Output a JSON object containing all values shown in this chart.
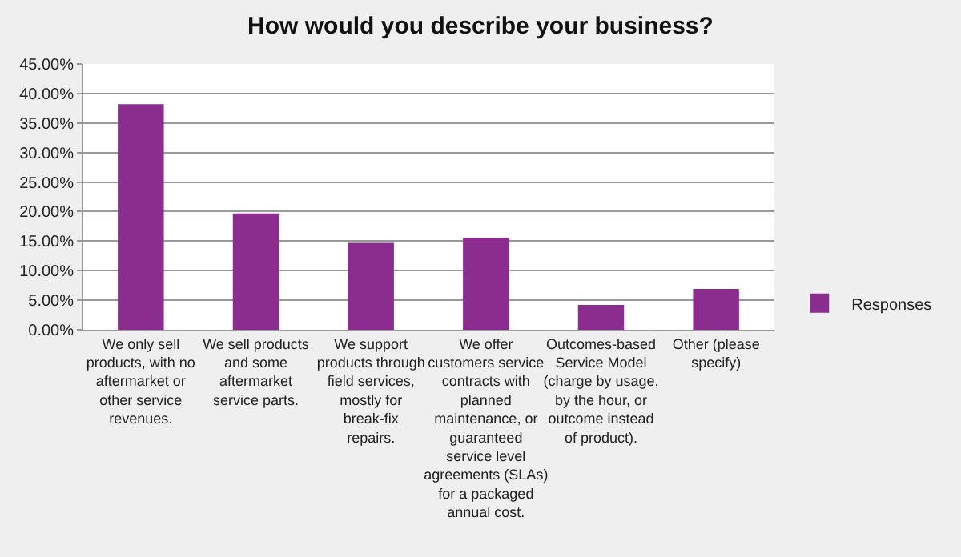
{
  "chart_data": {
    "type": "bar",
    "title": "How would you describe your business?",
    "categories": [
      "We only sell products, with no aftermarket or other service revenues.",
      "We sell products and some aftermarket service parts.",
      "We support products through field services, mostly for break-fix repairs.",
      "We offer customers service contracts with planned maintenance, or guaranteed service level agreements (SLAs) for a packaged annual cost.",
      "Outcomes-based Service Model (charge by usage, by the hour, or outcome instead of product).",
      "Other (please specify)"
    ],
    "series": [
      {
        "name": "Responses",
        "color": "#8b2c8f",
        "values": [
          38.2,
          19.7,
          14.7,
          15.6,
          4.2,
          6.9
        ]
      }
    ],
    "ylim": [
      0,
      45
    ],
    "yticks": [
      {
        "value": 0,
        "label": "0.00%"
      },
      {
        "value": 5,
        "label": "5.00%"
      },
      {
        "value": 10,
        "label": "10.00%"
      },
      {
        "value": 15,
        "label": "15.00%"
      },
      {
        "value": 20,
        "label": "20.00%"
      },
      {
        "value": 25,
        "label": "25.00%"
      },
      {
        "value": 30,
        "label": "30.00%"
      },
      {
        "value": 35,
        "label": "35.00%"
      },
      {
        "value": 40,
        "label": "40.00%"
      },
      {
        "value": 45,
        "label": "45.00%"
      }
    ],
    "grid": "y",
    "legend": "right"
  }
}
